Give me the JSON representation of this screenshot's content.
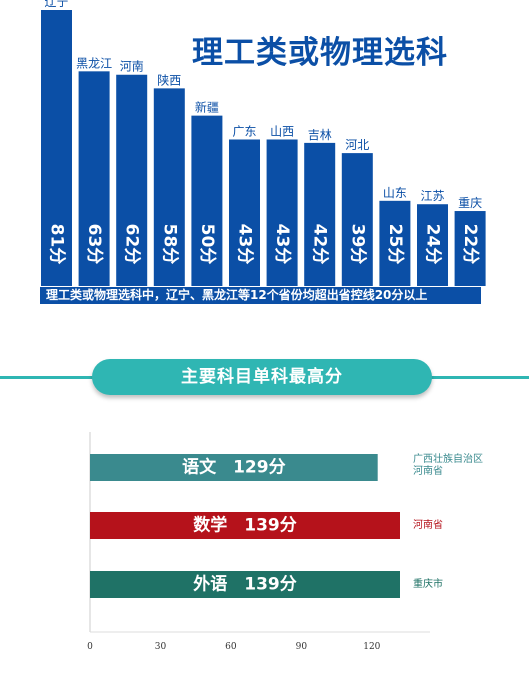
{
  "chart_data": [
    {
      "type": "bar",
      "title": "理工类或物理选科",
      "categories": [
        "辽宁",
        "黑龙江",
        "河南",
        "陕西",
        "新疆",
        "广东",
        "山西",
        "吉林",
        "河北",
        "山东",
        "江苏",
        "重庆"
      ],
      "values": [
        81,
        63,
        62,
        58,
        50,
        43,
        43,
        42,
        39,
        25,
        24,
        22
      ],
      "value_labels": [
        "81分",
        "63分",
        "62分",
        "58分",
        "50分",
        "43分",
        "43分",
        "42分",
        "39分",
        "25分",
        "24分",
        "22分"
      ],
      "annotation": "理工类或物理选科中，辽宁、黑龙江等12个省份均超出省控线20分以上",
      "bar_color": "#0b4fa6"
    },
    {
      "type": "bar",
      "orientation": "horizontal",
      "title": "主要科目单科最高分",
      "categories": [
        "语文",
        "数学",
        "外语"
      ],
      "values": [
        129,
        139,
        139
      ],
      "value_labels": [
        "129分",
        "139分",
        "139分"
      ],
      "bar_labels": [
        "语文　129分",
        "数学　139分",
        "外语　139分"
      ],
      "side_labels": [
        "广西壮族自治区\n河南省",
        "河南省",
        "重庆市"
      ],
      "colors": [
        "#3a8a8e",
        "#b5121b",
        "#1f7266"
      ],
      "side_label_colors": [
        "#3a8a8e",
        "#b5121b",
        "#1f7266"
      ],
      "xlim": [
        0,
        139
      ],
      "xticks": [
        "0",
        "30",
        "60",
        "90",
        "120"
      ]
    }
  ]
}
